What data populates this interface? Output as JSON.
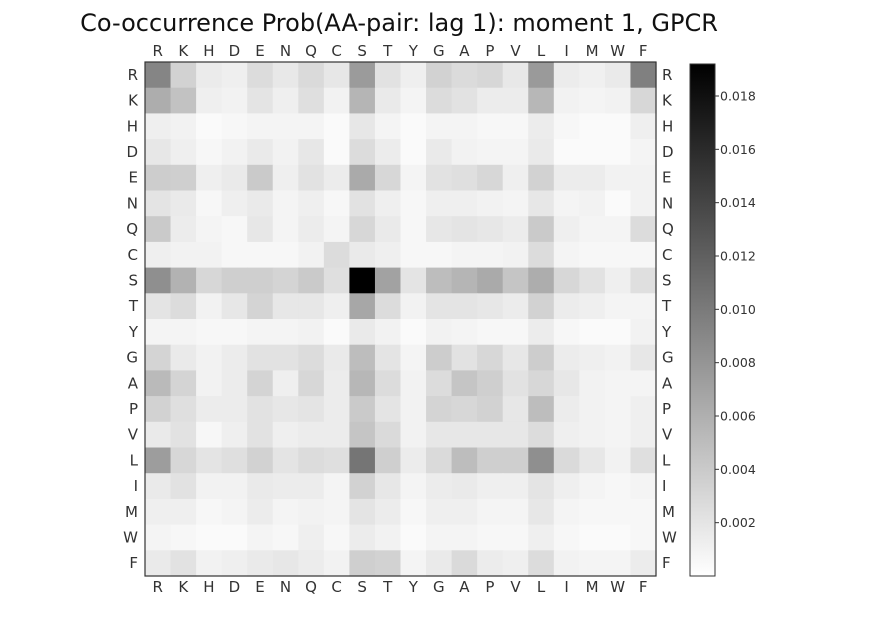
{
  "chart_data": {
    "type": "heatmap",
    "title": "Co-occurrence Prob(AA-pair: lag 1): moment 1, GPCR",
    "x_categories": [
      "R",
      "K",
      "H",
      "D",
      "E",
      "N",
      "Q",
      "C",
      "S",
      "T",
      "Y",
      "G",
      "A",
      "P",
      "V",
      "L",
      "I",
      "M",
      "W",
      "F"
    ],
    "y_categories": [
      "R",
      "K",
      "H",
      "D",
      "E",
      "N",
      "Q",
      "C",
      "S",
      "T",
      "Y",
      "G",
      "A",
      "P",
      "V",
      "L",
      "I",
      "M",
      "W",
      "F"
    ],
    "colormap": "Greys",
    "color_range": [
      0,
      0.0192
    ],
    "colorbar_ticks": [
      0.002,
      0.004,
      0.006,
      0.008,
      0.01,
      0.012,
      0.014,
      0.016,
      0.018
    ],
    "colorbar_tick_labels": [
      "0.002",
      "0.004",
      "0.006",
      "0.008",
      "0.010",
      "0.012",
      "0.014",
      "0.016",
      "0.018"
    ],
    "grid": false,
    "values": [
      [
        0.0092,
        0.0034,
        0.0015,
        0.0012,
        0.0026,
        0.0017,
        0.0028,
        0.0018,
        0.0075,
        0.0022,
        0.0012,
        0.0034,
        0.0027,
        0.003,
        0.0017,
        0.0076,
        0.0014,
        0.0011,
        0.0016,
        0.0096
      ],
      [
        0.0062,
        0.0046,
        0.0012,
        0.001,
        0.002,
        0.0012,
        0.0024,
        0.001,
        0.0056,
        0.0016,
        0.0008,
        0.0026,
        0.0022,
        0.0014,
        0.0014,
        0.0054,
        0.001,
        0.0008,
        0.001,
        0.003
      ],
      [
        0.0012,
        0.001,
        0.0004,
        0.0006,
        0.0008,
        0.0008,
        0.0008,
        0.0004,
        0.0018,
        0.0008,
        0.0004,
        0.0008,
        0.0008,
        0.0006,
        0.0006,
        0.0014,
        0.0006,
        0.0004,
        0.0004,
        0.0012
      ],
      [
        0.0018,
        0.0012,
        0.0006,
        0.001,
        0.0016,
        0.001,
        0.0018,
        0.0004,
        0.0026,
        0.0014,
        0.0004,
        0.0016,
        0.001,
        0.0008,
        0.0008,
        0.0016,
        0.0004,
        0.0004,
        0.0004,
        0.0008
      ],
      [
        0.0038,
        0.0036,
        0.0012,
        0.0016,
        0.004,
        0.0012,
        0.0022,
        0.0014,
        0.0064,
        0.003,
        0.0008,
        0.0022,
        0.0024,
        0.003,
        0.0012,
        0.0034,
        0.0014,
        0.0014,
        0.001,
        0.001
      ],
      [
        0.002,
        0.0016,
        0.0006,
        0.0012,
        0.0016,
        0.0008,
        0.0012,
        0.0006,
        0.0022,
        0.0012,
        0.0006,
        0.0012,
        0.0012,
        0.001,
        0.0008,
        0.0018,
        0.0008,
        0.001,
        0.0004,
        0.001
      ],
      [
        0.004,
        0.0014,
        0.0008,
        0.0006,
        0.0018,
        0.0008,
        0.0014,
        0.0008,
        0.003,
        0.0016,
        0.0006,
        0.0018,
        0.002,
        0.0018,
        0.0014,
        0.004,
        0.0012,
        0.0008,
        0.0008,
        0.0026
      ],
      [
        0.0012,
        0.001,
        0.001,
        0.0006,
        0.0006,
        0.0006,
        0.001,
        0.0026,
        0.0016,
        0.0012,
        0.0006,
        0.0006,
        0.0008,
        0.0008,
        0.001,
        0.0026,
        0.0008,
        0.0006,
        0.0006,
        0.0006
      ],
      [
        0.0084,
        0.0058,
        0.003,
        0.0036,
        0.0036,
        0.0032,
        0.004,
        0.0024,
        0.0192,
        0.007,
        0.002,
        0.005,
        0.0056,
        0.0064,
        0.0044,
        0.0062,
        0.003,
        0.0022,
        0.0012,
        0.0024
      ],
      [
        0.002,
        0.0026,
        0.001,
        0.0018,
        0.0032,
        0.0018,
        0.0018,
        0.0012,
        0.0066,
        0.0026,
        0.001,
        0.002,
        0.002,
        0.0018,
        0.0014,
        0.0034,
        0.0014,
        0.0012,
        0.0008,
        0.0008
      ],
      [
        0.0008,
        0.0008,
        0.0006,
        0.0006,
        0.0008,
        0.0008,
        0.001,
        0.0004,
        0.0016,
        0.001,
        0.0004,
        0.001,
        0.0008,
        0.0006,
        0.0006,
        0.0014,
        0.0006,
        0.0004,
        0.0004,
        0.001
      ],
      [
        0.0032,
        0.0016,
        0.001,
        0.0014,
        0.0022,
        0.0022,
        0.0026,
        0.0016,
        0.005,
        0.002,
        0.0008,
        0.0038,
        0.0022,
        0.003,
        0.0018,
        0.0038,
        0.0014,
        0.0012,
        0.001,
        0.0018
      ],
      [
        0.0052,
        0.0032,
        0.001,
        0.0014,
        0.0032,
        0.0012,
        0.003,
        0.0014,
        0.0054,
        0.0026,
        0.001,
        0.0026,
        0.0044,
        0.0036,
        0.0022,
        0.003,
        0.0018,
        0.001,
        0.0008,
        0.0008
      ],
      [
        0.0034,
        0.0024,
        0.0014,
        0.0014,
        0.0022,
        0.0018,
        0.002,
        0.0014,
        0.004,
        0.002,
        0.001,
        0.0032,
        0.003,
        0.0034,
        0.0018,
        0.005,
        0.0014,
        0.001,
        0.0008,
        0.0012
      ],
      [
        0.0016,
        0.0022,
        0.0006,
        0.0012,
        0.0022,
        0.0012,
        0.0014,
        0.0014,
        0.0044,
        0.0028,
        0.001,
        0.0018,
        0.0018,
        0.0018,
        0.0018,
        0.0026,
        0.0012,
        0.001,
        0.0008,
        0.0012
      ],
      [
        0.0074,
        0.003,
        0.002,
        0.0024,
        0.0034,
        0.002,
        0.0026,
        0.0024,
        0.0104,
        0.0036,
        0.0014,
        0.0028,
        0.005,
        0.0036,
        0.0036,
        0.0084,
        0.0028,
        0.0018,
        0.001,
        0.0024
      ],
      [
        0.0016,
        0.0022,
        0.001,
        0.001,
        0.0016,
        0.0014,
        0.0014,
        0.0008,
        0.0034,
        0.0018,
        0.0008,
        0.0014,
        0.0016,
        0.0012,
        0.0012,
        0.002,
        0.0012,
        0.0008,
        0.0006,
        0.0008
      ],
      [
        0.0012,
        0.0012,
        0.0006,
        0.0008,
        0.0014,
        0.0008,
        0.001,
        0.0008,
        0.002,
        0.0014,
        0.0006,
        0.0012,
        0.0012,
        0.0008,
        0.0008,
        0.0018,
        0.0008,
        0.0006,
        0.0006,
        0.0006
      ],
      [
        0.0008,
        0.0006,
        0.0004,
        0.0004,
        0.0008,
        0.0006,
        0.0012,
        0.0006,
        0.0014,
        0.001,
        0.0004,
        0.0008,
        0.0008,
        0.0006,
        0.0006,
        0.0012,
        0.0006,
        0.0004,
        0.0004,
        0.0006
      ],
      [
        0.0016,
        0.0022,
        0.001,
        0.0012,
        0.0016,
        0.0018,
        0.0014,
        0.001,
        0.0036,
        0.0034,
        0.0008,
        0.0016,
        0.0028,
        0.0014,
        0.0012,
        0.0026,
        0.001,
        0.0008,
        0.0008,
        0.0014
      ]
    ]
  }
}
